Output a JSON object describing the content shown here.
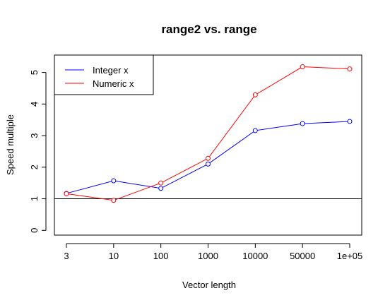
{
  "chart_data": {
    "type": "line",
    "title": "range2 vs. range",
    "xlabel": "Vector length",
    "ylabel": "Speed multiple",
    "categories": [
      "3",
      "10",
      "100",
      "1000",
      "10000",
      "50000",
      "1e+05"
    ],
    "yticks": [
      "0",
      "1",
      "2",
      "3",
      "4",
      "5"
    ],
    "ylim": [
      -0.15,
      5.55
    ],
    "reference_line_y": 1,
    "grid": false,
    "legend_position": "top-left",
    "series": [
      {
        "name": "Integer x",
        "color": "#0000ff",
        "values": [
          1.17,
          1.57,
          1.33,
          2.1,
          3.16,
          3.38,
          3.45
        ]
      },
      {
        "name": "Numeric x",
        "color": "#ff0000",
        "values": [
          1.16,
          0.95,
          1.5,
          2.28,
          4.29,
          5.18,
          5.11
        ]
      }
    ]
  }
}
